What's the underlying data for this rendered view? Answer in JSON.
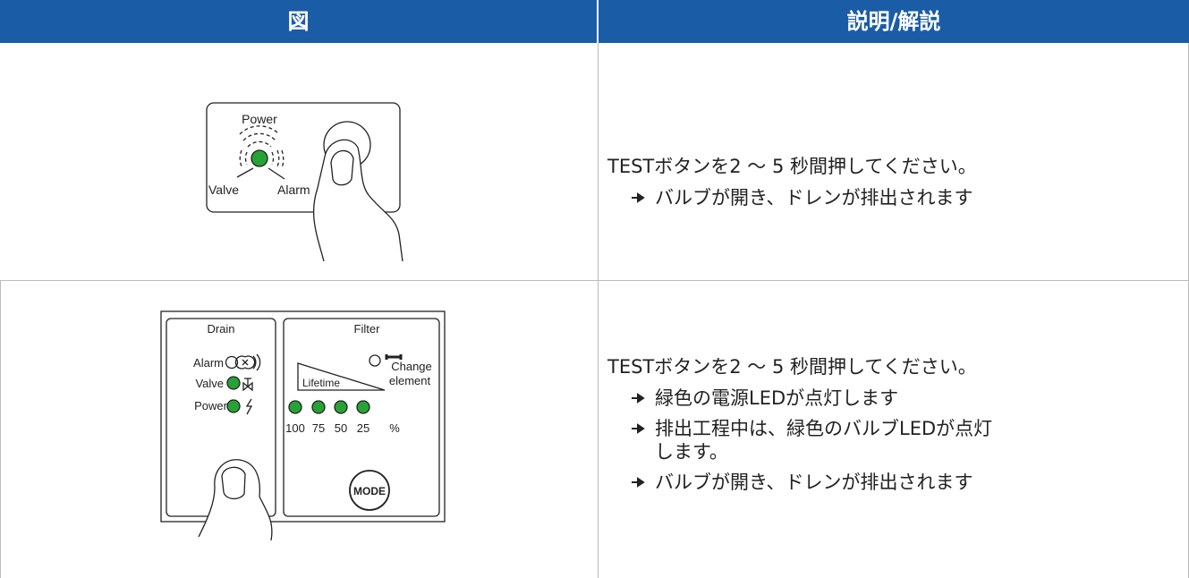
{
  "table": {
    "header": [
      "図",
      "説明/解説"
    ],
    "rows": [
      {
        "figure": {
          "power": "Power",
          "valve": "Valve",
          "alarm": "Alarm"
        },
        "description": {
          "text": "TESTボタンを2 ～ 5 秒間押してください。",
          "steps": [
            "バルブが開き、ドレンが排出されます"
          ]
        }
      },
      {
        "figure": {
          "drain": {
            "title": "Drain",
            "alarm": "Alarm",
            "valve": "Valve",
            "power": "Power"
          },
          "filter": {
            "title": "Filter",
            "change": [
              "Change",
              "element"
            ],
            "lifetime": "Lifetime",
            "levels": [
              100,
              75,
              50,
              25
            ],
            "unit": "%",
            "mode": "MODE"
          }
        },
        "description": {
          "text": "TESTボタンを2 ～ 5 秒間押してください。",
          "steps": [
            "緑色の電源LEDが点灯します",
            "排出工程中は、緑色のバルブLEDが点灯します。",
            "バルブが開き、ドレンが排出されます"
          ]
        }
      }
    ]
  }
}
